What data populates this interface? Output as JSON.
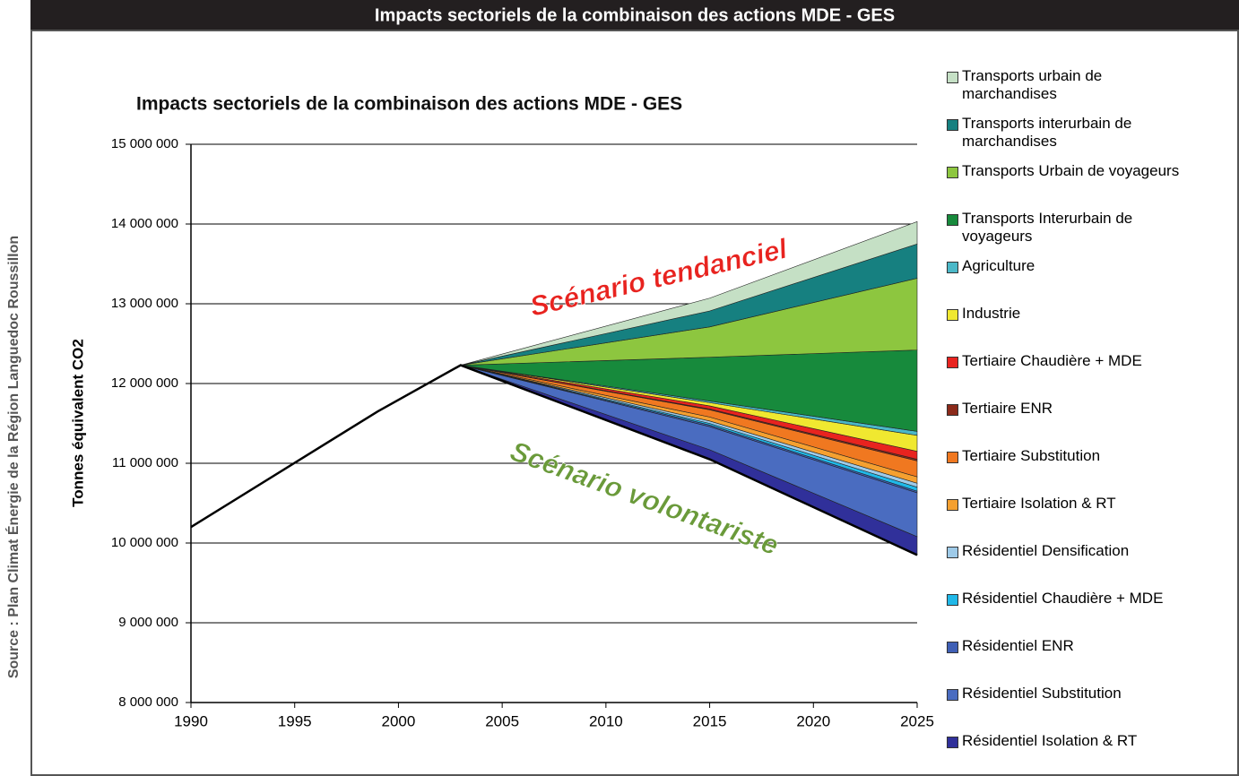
{
  "header_title": "Impacts sectoriels de la combinaison des actions MDE - GES",
  "source": "Source : Plan Climat Énergie de la Région Languedoc Roussillon",
  "chart_data": {
    "type": "area",
    "title": "Impacts sectoriels de la combinaison des actions MDE - GES",
    "ylabel": "Tonnes équivalent CO2",
    "annotations": [
      "Scénario tendanciel",
      "Scénario volontariste"
    ],
    "x": [
      1990,
      1999,
      2003,
      2015,
      2025
    ],
    "values": [
      10200000,
      11650000,
      12230000,
      11050000,
      9850000
    ],
    "color": "#000000",
    "series": [
      {
        "name": "Résidentiel Isolation & RT",
        "color": "#30309a",
        "values": [
          null,
          null,
          0,
          120000,
          230000
        ]
      },
      {
        "name": "Résidentiel Substitution",
        "color": "#4a6cc0",
        "values": [
          null,
          null,
          0,
          290000,
          550000
        ]
      },
      {
        "name": "Résidentiel ENR",
        "color": "#3f5fb5",
        "values": [
          null,
          null,
          0,
          20000,
          20000
        ]
      },
      {
        "name": "Résidentiel Chaudière + MDE",
        "color": "#20b8e8",
        "values": [
          null,
          null,
          0,
          20000,
          50000
        ]
      },
      {
        "name": "Résidentiel Densification",
        "color": "#9ecae8",
        "values": [
          null,
          null,
          0,
          30000,
          50000
        ]
      },
      {
        "name": "Tertiaire  Isolation & RT",
        "color": "#f5a030",
        "values": [
          null,
          null,
          0,
          50000,
          80000
        ]
      },
      {
        "name": "Tertiaire  Substitution",
        "color": "#f07820",
        "values": [
          null,
          null,
          0,
          90000,
          200000
        ]
      },
      {
        "name": "Tertiaire ENR",
        "color": "#8b2a1a",
        "values": [
          null,
          null,
          0,
          10000,
          20000
        ]
      },
      {
        "name": "Tertiaire Chaudière + MDE",
        "color": "#e8231f",
        "values": [
          null,
          null,
          0,
          40000,
          100000
        ]
      },
      {
        "name": "Industrie",
        "color": "#f0e830",
        "values": [
          null,
          null,
          0,
          40000,
          200000
        ]
      },
      {
        "name": "Agriculture",
        "color": "#4bb8c8",
        "values": [
          null,
          null,
          0,
          20000,
          50000
        ]
      },
      {
        "name": "Transports Interurbain de voyageurs",
        "color": "#178a3c",
        "values": [
          null,
          null,
          0,
          550000,
          1020000
        ]
      },
      {
        "name": "Transports Urbain de voyageurs",
        "color": "#8dc63f",
        "values": [
          null,
          null,
          0,
          380000,
          900000
        ]
      },
      {
        "name": "Transports interurbain de marchandises",
        "color": "#168080",
        "values": [
          null,
          null,
          0,
          200000,
          430000
        ]
      },
      {
        "name": "Transports urbain de marchandises",
        "color": "#c5e0c5",
        "values": [
          null,
          null,
          0,
          160000,
          280000
        ]
      }
    ],
    "xlim": [
      1990,
      2025
    ],
    "xticks": [
      1990,
      1995,
      2000,
      2005,
      2010,
      2015,
      2020,
      2025
    ],
    "ylim": [
      8000000,
      15000000
    ],
    "yticks": [
      {
        "value": 8000000,
        "label": "8 000 000"
      },
      {
        "value": 9000000,
        "label": "9 000 000"
      },
      {
        "value": 10000000,
        "label": "10 000 000"
      },
      {
        "value": 11000000,
        "label": "11 000 000"
      },
      {
        "value": 12000000,
        "label": "12 000 000"
      },
      {
        "value": 13000000,
        "label": "13 000 000"
      },
      {
        "value": 14000000,
        "label": "14 000 000"
      },
      {
        "value": 15000000,
        "label": "15 000 000"
      }
    ],
    "grid": true,
    "legend": "right"
  }
}
